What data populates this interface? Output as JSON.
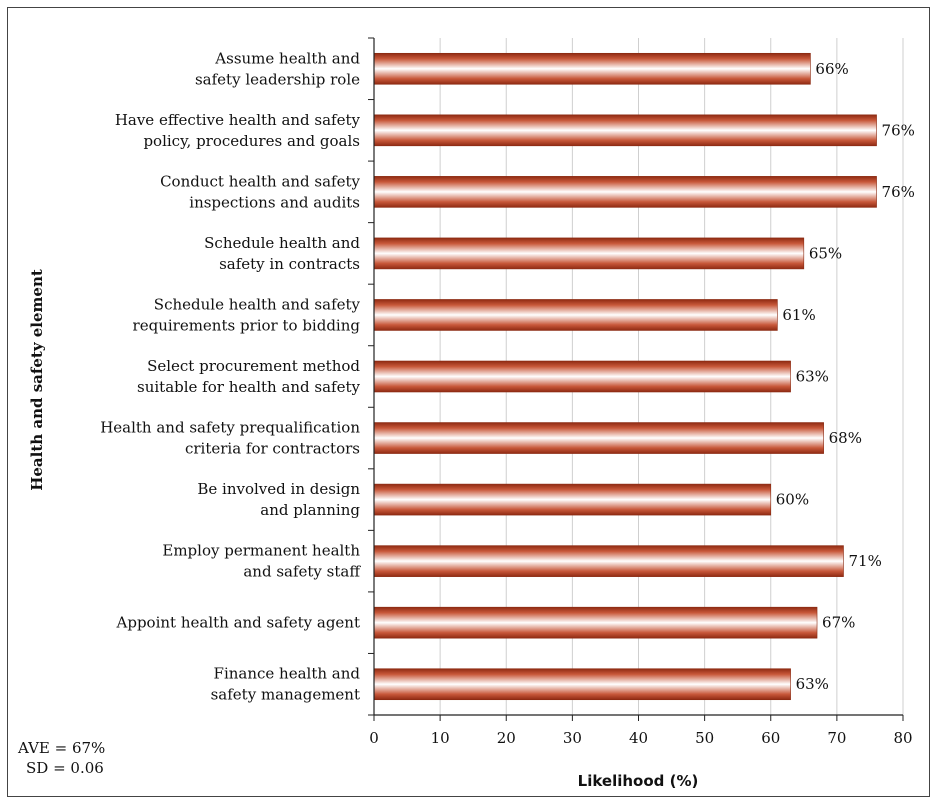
{
  "chart_data": {
    "type": "bar",
    "orientation": "horizontal",
    "categories": [
      [
        "Assume health and",
        "safety leadership role"
      ],
      [
        "Have effective health and safety",
        "policy, procedures and goals"
      ],
      [
        "Conduct health and safety",
        "inspections and audits"
      ],
      [
        "Schedule health and",
        "safety in contracts"
      ],
      [
        "Schedule health and safety",
        "requirements prior to bidding"
      ],
      [
        "Select procurement method",
        "suitable for health and safety"
      ],
      [
        "Health and safety prequalification",
        "criteria for contractors"
      ],
      [
        "Be involved in design",
        "and planning"
      ],
      [
        "Employ permanent health",
        "and safety staff"
      ],
      [
        "Appoint health and safety agent"
      ],
      [
        "Finance health and",
        "safety management"
      ]
    ],
    "values": [
      66,
      76,
      76,
      65,
      61,
      63,
      68,
      60,
      71,
      67,
      63
    ],
    "value_labels": [
      "66%",
      "76%",
      "76%",
      "65%",
      "61%",
      "63%",
      "68%",
      "60%",
      "71%",
      "67%",
      "63%"
    ],
    "xlabel": "Likelihood (%)",
    "ylabel": "Health and safety element",
    "xlim": [
      0,
      80
    ],
    "xticks": [
      0,
      10,
      20,
      30,
      40,
      50,
      60,
      70,
      80
    ],
    "grid": true,
    "bar_color": "#b33a1e"
  },
  "stats": {
    "ave": "AVE = 67%",
    "sd": "SD = 0.06"
  }
}
